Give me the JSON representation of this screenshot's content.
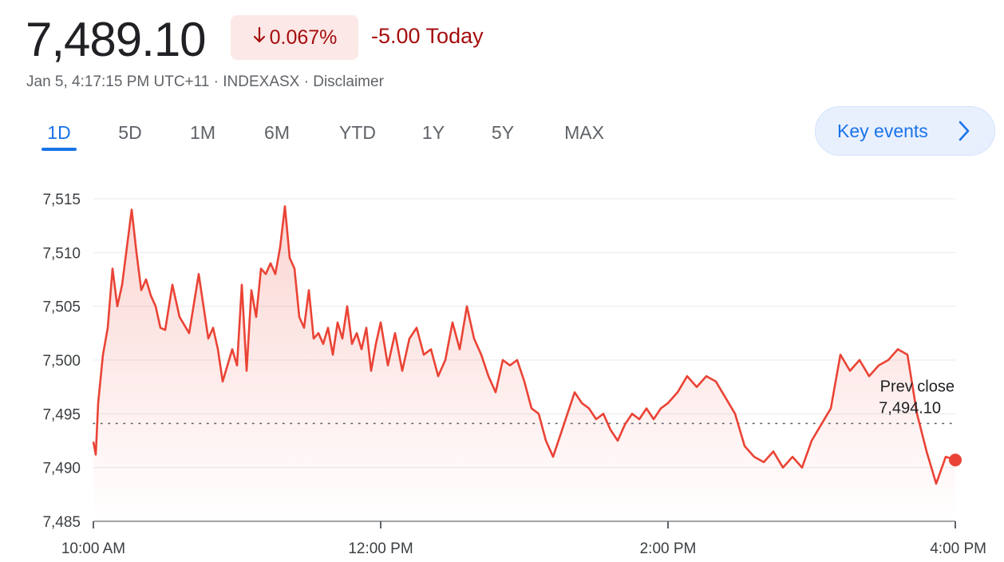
{
  "header": {
    "price": "7,489.10",
    "change_percent": "0.067%",
    "change_today": "-5.00 Today",
    "timestamp": "Jan 5, 4:17:15 PM UTC+11",
    "separator": " · ",
    "exchange": "INDEXASX",
    "disclaimer": "Disclaimer"
  },
  "ranges": [
    "1D",
    "5D",
    "1M",
    "6M",
    "YTD",
    "1Y",
    "5Y",
    "MAX"
  ],
  "active_range": "1D",
  "key_events": {
    "label": "Key events"
  },
  "colors": {
    "line": "#ea4335",
    "negative": "#a50e0e",
    "accent": "#1a73e8",
    "grid": "#e8eaed"
  },
  "chart_data": {
    "type": "line",
    "ylim": [
      7485,
      7515
    ],
    "y_ticks": [
      7515,
      7510,
      7505,
      7500,
      7495,
      7490,
      7485
    ],
    "y_tick_labels": [
      "7,515",
      "7,510",
      "7,505",
      "7,500",
      "7,495",
      "7,490",
      "7,485"
    ],
    "x_range": [
      "10:00",
      "16:00"
    ],
    "x_ticks": [
      "10:00",
      "12:00",
      "14:00",
      "16:00"
    ],
    "x_tick_labels": [
      "10:00 AM",
      "12:00 PM",
      "2:00 PM",
      "4:00 PM"
    ],
    "reference_line": {
      "label": "Prev close",
      "value_label": "7,494.10",
      "value": 7494.1
    },
    "last_point_marker": true,
    "grid": true,
    "series": [
      {
        "x": [
          "10:00",
          "10:01",
          "10:02",
          "10:04",
          "10:06",
          "10:08",
          "10:10",
          "10:12",
          "10:14",
          "10:16",
          "10:18",
          "10:20",
          "10:22",
          "10:24",
          "10:26",
          "10:28",
          "10:30",
          "10:33",
          "10:36",
          "10:40",
          "10:44",
          "10:48",
          "10:50",
          "10:52",
          "10:54",
          "10:56",
          "10:58",
          "11:00",
          "11:02",
          "11:04",
          "11:06",
          "11:08",
          "11:10",
          "11:12",
          "11:14",
          "11:16",
          "11:18",
          "11:20",
          "11:22",
          "11:24",
          "11:26",
          "11:28",
          "11:30",
          "11:32",
          "11:34",
          "11:36",
          "11:38",
          "11:40",
          "11:42",
          "11:44",
          "11:46",
          "11:48",
          "11:50",
          "11:52",
          "11:54",
          "11:56",
          "11:58",
          "12:00",
          "12:03",
          "12:06",
          "12:09",
          "12:12",
          "12:15",
          "12:18",
          "12:21",
          "12:24",
          "12:27",
          "12:30",
          "12:33",
          "12:36",
          "12:39",
          "12:42",
          "12:45",
          "12:48",
          "12:51",
          "12:54",
          "12:57",
          "13:00",
          "13:03",
          "13:06",
          "13:09",
          "13:12",
          "13:15",
          "13:18",
          "13:21",
          "13:24",
          "13:27",
          "13:30",
          "13:33",
          "13:36",
          "13:39",
          "13:42",
          "13:45",
          "13:48",
          "13:51",
          "13:54",
          "13:57",
          "14:00",
          "14:04",
          "14:08",
          "14:12",
          "14:16",
          "14:20",
          "14:24",
          "14:28",
          "14:32",
          "14:36",
          "14:40",
          "14:44",
          "14:48",
          "14:52",
          "14:56",
          "15:00",
          "15:04",
          "15:08",
          "15:12",
          "15:16",
          "15:20",
          "15:24",
          "15:28",
          "15:32",
          "15:36",
          "15:40",
          "15:44",
          "15:48",
          "15:52",
          "15:56",
          "16:00"
        ],
        "y": [
          7492.4,
          7491.2,
          7496.0,
          7500.5,
          7503.0,
          7508.5,
          7505.0,
          7507.0,
          7510.5,
          7514.0,
          7510.0,
          7506.5,
          7507.5,
          7506.0,
          7505.0,
          7503.0,
          7502.8,
          7507.0,
          7504.0,
          7502.5,
          7508.0,
          7502.0,
          7503.0,
          7501.0,
          7498.0,
          7499.5,
          7501.0,
          7499.5,
          7507.0,
          7499.0,
          7506.5,
          7504.0,
          7508.5,
          7508.0,
          7509.0,
          7508.0,
          7510.5,
          7514.3,
          7509.5,
          7508.5,
          7504.0,
          7503.0,
          7506.5,
          7502.0,
          7502.5,
          7501.5,
          7503.0,
          7500.5,
          7503.5,
          7502.0,
          7505.0,
          7501.5,
          7502.5,
          7501.0,
          7503.0,
          7499.0,
          7501.5,
          7503.5,
          7499.5,
          7502.5,
          7499.0,
          7502.0,
          7503.0,
          7500.5,
          7501.0,
          7498.5,
          7500.0,
          7503.5,
          7501.0,
          7505.0,
          7502.0,
          7500.5,
          7498.5,
          7497.0,
          7500.0,
          7499.5,
          7500.0,
          7498.0,
          7495.5,
          7495.0,
          7492.5,
          7491.0,
          7493.0,
          7495.0,
          7497.0,
          7496.0,
          7495.5,
          7494.5,
          7495.0,
          7493.5,
          7492.5,
          7494.0,
          7495.0,
          7494.5,
          7495.5,
          7494.5,
          7495.5,
          7496.0,
          7497.0,
          7498.5,
          7497.5,
          7498.5,
          7498.0,
          7496.5,
          7495.0,
          7492.0,
          7491.0,
          7490.5,
          7491.5,
          7490.0,
          7491.0,
          7490.0,
          7492.5,
          7494.0,
          7495.5,
          7500.5,
          7499.0,
          7500.0,
          7498.5,
          7499.5,
          7500.0,
          7501.0,
          7500.5,
          7495.0,
          7491.5,
          7488.5,
          7491.0,
          7490.7
        ]
      }
    ]
  }
}
